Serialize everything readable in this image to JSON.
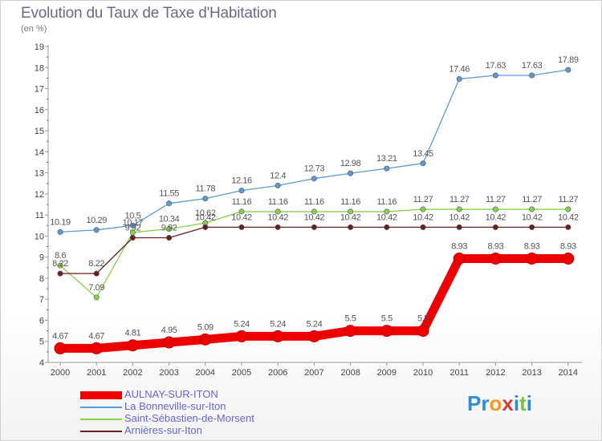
{
  "title": "Evolution du Taux de Taxe d'Habitation",
  "unit_label": "(en %)",
  "logo_text": "Proxiti",
  "logo_colors": [
    "#2e8bd6",
    "#2e8bd6",
    "#f39a1e",
    "#d63b3b",
    "#2e8bd6",
    "#7dc242",
    "#2e8bd6"
  ],
  "chart_data": {
    "type": "line",
    "title": "Evolution du Taux de Taxe d'Habitation",
    "ylabel": "(en %)",
    "xlabel": "",
    "ylim": [
      4,
      19
    ],
    "yticks": [
      4,
      5,
      6,
      7,
      8,
      9,
      10,
      11,
      12,
      13,
      14,
      15,
      16,
      17,
      18,
      19
    ],
    "grid": false,
    "legend_position": "bottom-left",
    "x": [
      "2000",
      "2001",
      "2002",
      "2003",
      "2004",
      "2005",
      "2006",
      "2007",
      "2008",
      "2009",
      "2010",
      "2011",
      "2012",
      "2013",
      "2014"
    ],
    "series": [
      {
        "name": "AULNAY-SUR-ITON",
        "color": "#ee0000",
        "values": [
          4.67,
          4.67,
          4.81,
          4.95,
          5.09,
          5.24,
          5.24,
          5.24,
          5.5,
          5.5,
          5.5,
          8.93,
          8.93,
          8.93,
          8.93
        ],
        "labels": [
          "4.67",
          "4.67",
          "4.81",
          "4.95",
          "5.09",
          "5.24",
          "5.24",
          "5.24",
          "5.5",
          "5.5",
          "5.5",
          "8.93",
          "8.93",
          "8.93",
          "8.93"
        ]
      },
      {
        "name": "La Bonneville-sur-Iton",
        "color": "#5a9bd5",
        "values": [
          10.19,
          10.29,
          10.5,
          11.55,
          11.78,
          12.16,
          12.4,
          12.73,
          12.98,
          13.21,
          13.45,
          17.46,
          17.63,
          17.63,
          17.89
        ],
        "labels": [
          "10.19",
          "10.29",
          "10.5",
          "11.55",
          "11.78",
          "12.16",
          "12.4",
          "12.73",
          "12.98",
          "13.21",
          "13.45",
          "17.46",
          "17.63",
          "17.63",
          "17.89"
        ]
      },
      {
        "name": "Saint-Sébastien-de-Morsent",
        "color": "#86d04a",
        "values": [
          8.6,
          7.09,
          10.17,
          10.34,
          10.62,
          11.16,
          11.16,
          11.16,
          11.16,
          11.16,
          11.27,
          11.27,
          11.27,
          11.27,
          11.27
        ],
        "labels": [
          "8.6",
          "7.09",
          "10.17",
          "10.34",
          "10.62",
          "11.16",
          "11.16",
          "11.16",
          "11.16",
          "11.16",
          "11.27",
          "11.27",
          "11.27",
          "11.27",
          "11.27"
        ]
      },
      {
        "name": "Arnières-sur-Iton",
        "color": "#6b1e1e",
        "values": [
          8.22,
          8.22,
          9.92,
          9.92,
          10.42,
          10.42,
          10.42,
          10.42,
          10.42,
          10.42,
          10.42,
          10.42,
          10.42,
          10.42,
          10.42
        ],
        "labels": [
          "8.22",
          "8.22",
          "9.92",
          "9.92",
          "10.42",
          "10.42",
          "10.42",
          "10.42",
          "10.42",
          "10.42",
          "10.42",
          "10.42",
          "10.42",
          "10.42",
          "10.42"
        ]
      }
    ]
  }
}
